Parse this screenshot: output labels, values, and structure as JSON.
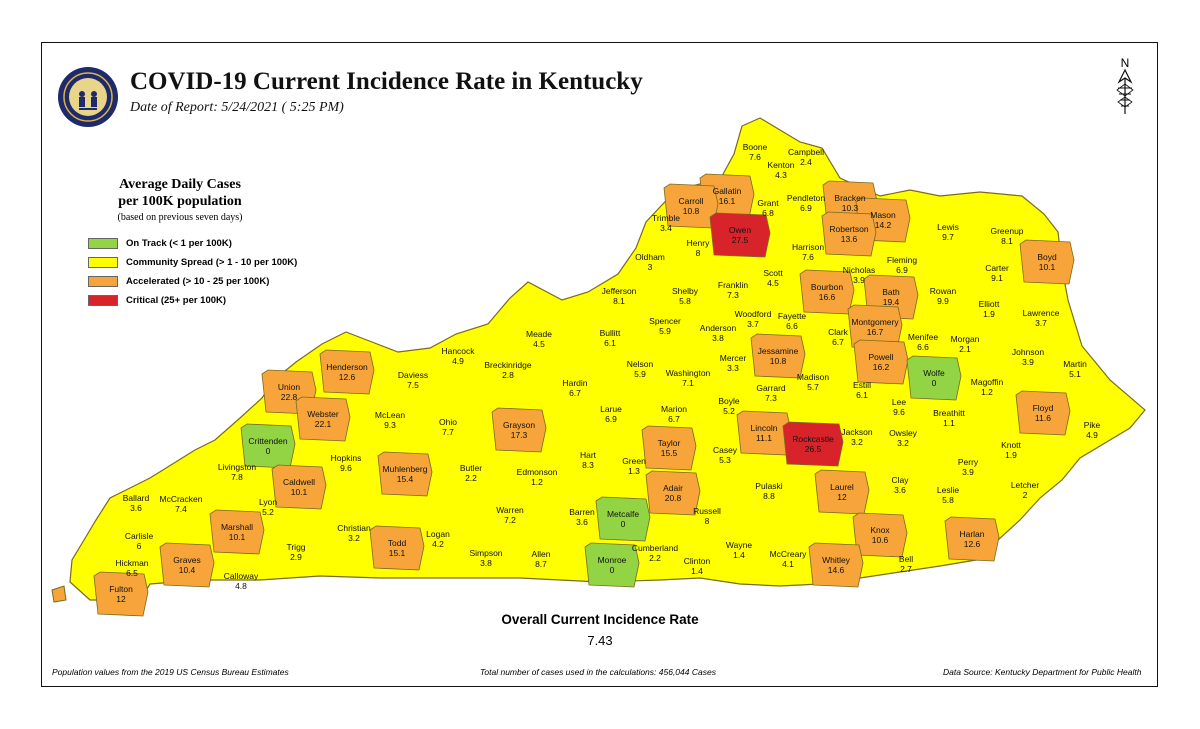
{
  "header": {
    "title": "COVID-19 Current Incidence Rate in Kentucky",
    "date_of_report": "Date of Report: 5/24/2021 ( 5:25 PM)",
    "north_label": "N"
  },
  "legend": {
    "title_line1": "Average Daily Cases",
    "title_line2": "per 100K population",
    "note": "(based on previous seven days)",
    "items": [
      {
        "label": "On Track (< 1 per 100K)",
        "color": "#92d443"
      },
      {
        "label": "Community Spread (> 1 - 10 per 100K)",
        "color": "#ffff00"
      },
      {
        "label": "Accelerated (> 10 - 25 per 100K)",
        "color": "#f7a43a"
      },
      {
        "label": "Critical (25+ per 100K)",
        "color": "#d8232a"
      }
    ]
  },
  "counties": [
    {
      "name": "Boone",
      "rate": "7.6",
      "level": 1
    },
    {
      "name": "Kenton",
      "rate": "4.3",
      "level": 1
    },
    {
      "name": "Campbell",
      "rate": "2.4",
      "level": 1
    },
    {
      "name": "Gallatin",
      "rate": "16.1",
      "level": 2
    },
    {
      "name": "Carroll",
      "rate": "10.8",
      "level": 2
    },
    {
      "name": "Trimble",
      "rate": "3.4",
      "level": 1
    },
    {
      "name": "Grant",
      "rate": "6.8",
      "level": 1
    },
    {
      "name": "Pendleton",
      "rate": "6.9",
      "level": 1
    },
    {
      "name": "Bracken",
      "rate": "10.3",
      "level": 2
    },
    {
      "name": "Mason",
      "rate": "14.2",
      "level": 2
    },
    {
      "name": "Robertson",
      "rate": "13.6",
      "level": 2
    },
    {
      "name": "Owen",
      "rate": "27.5",
      "level": 3
    },
    {
      "name": "Henry",
      "rate": "8",
      "level": 1
    },
    {
      "name": "Oldham",
      "rate": "3",
      "level": 1
    },
    {
      "name": "Harrison",
      "rate": "7.6",
      "level": 1
    },
    {
      "name": "Lewis",
      "rate": "9.7",
      "level": 1
    },
    {
      "name": "Greenup",
      "rate": "8.1",
      "level": 1
    },
    {
      "name": "Boyd",
      "rate": "10.1",
      "level": 2
    },
    {
      "name": "Fleming",
      "rate": "6.9",
      "level": 1
    },
    {
      "name": "Nicholas",
      "rate": "3.9",
      "level": 1
    },
    {
      "name": "Carter",
      "rate": "9.1",
      "level": 1
    },
    {
      "name": "Scott",
      "rate": "4.5",
      "level": 1
    },
    {
      "name": "Jefferson",
      "rate": "8.1",
      "level": 1
    },
    {
      "name": "Shelby",
      "rate": "5.8",
      "level": 1
    },
    {
      "name": "Franklin",
      "rate": "7.3",
      "level": 1
    },
    {
      "name": "Bourbon",
      "rate": "16.6",
      "level": 2
    },
    {
      "name": "Bath",
      "rate": "19.4",
      "level": 2
    },
    {
      "name": "Rowan",
      "rate": "9.9",
      "level": 1
    },
    {
      "name": "Elliott",
      "rate": "1.9",
      "level": 1
    },
    {
      "name": "Lawrence",
      "rate": "3.7",
      "level": 1
    },
    {
      "name": "Woodford",
      "rate": "3.7",
      "level": 1
    },
    {
      "name": "Fayette",
      "rate": "6.6",
      "level": 1
    },
    {
      "name": "Montgomery",
      "rate": "16.7",
      "level": 2
    },
    {
      "name": "Spencer",
      "rate": "5.9",
      "level": 1
    },
    {
      "name": "Anderson",
      "rate": "3.8",
      "level": 1
    },
    {
      "name": "Clark",
      "rate": "6.7",
      "level": 1
    },
    {
      "name": "Menifee",
      "rate": "6.6",
      "level": 1
    },
    {
      "name": "Morgan",
      "rate": "2.1",
      "level": 1
    },
    {
      "name": "Meade",
      "rate": "4.5",
      "level": 1
    },
    {
      "name": "Bullitt",
      "rate": "6.1",
      "level": 1
    },
    {
      "name": "Jessamine",
      "rate": "10.8",
      "level": 2
    },
    {
      "name": "Johnson",
      "rate": "3.9",
      "level": 1
    },
    {
      "name": "Martin",
      "rate": "5.1",
      "level": 1
    },
    {
      "name": "Hancock",
      "rate": "4.9",
      "level": 1
    },
    {
      "name": "Breckinridge",
      "rate": "2.8",
      "level": 1
    },
    {
      "name": "Nelson",
      "rate": "5.9",
      "level": 1
    },
    {
      "name": "Washington",
      "rate": "7.1",
      "level": 1
    },
    {
      "name": "Mercer",
      "rate": "3.3",
      "level": 1
    },
    {
      "name": "Powell",
      "rate": "16.2",
      "level": 2
    },
    {
      "name": "Wolfe",
      "rate": "0",
      "level": 0
    },
    {
      "name": "Henderson",
      "rate": "12.6",
      "level": 2
    },
    {
      "name": "Daviess",
      "rate": "7.5",
      "level": 1
    },
    {
      "name": "Hardin",
      "rate": "6.7",
      "level": 1
    },
    {
      "name": "Madison",
      "rate": "5.7",
      "level": 1
    },
    {
      "name": "Garrard",
      "rate": "7.3",
      "level": 1
    },
    {
      "name": "Estill",
      "rate": "6.1",
      "level": 1
    },
    {
      "name": "Magoffin",
      "rate": "1.2",
      "level": 1
    },
    {
      "name": "Union",
      "rate": "22.8",
      "level": 2
    },
    {
      "name": "Marion",
      "rate": "6.7",
      "level": 1
    },
    {
      "name": "Boyle",
      "rate": "5.2",
      "level": 1
    },
    {
      "name": "Lee",
      "rate": "9.6",
      "level": 1
    },
    {
      "name": "Breathitt",
      "rate": "1.1",
      "level": 1
    },
    {
      "name": "Floyd",
      "rate": "11.6",
      "level": 2
    },
    {
      "name": "Webster",
      "rate": "22.1",
      "level": 2
    },
    {
      "name": "McLean",
      "rate": "9.3",
      "level": 1
    },
    {
      "name": "Ohio",
      "rate": "7.7",
      "level": 1
    },
    {
      "name": "Grayson",
      "rate": "17.3",
      "level": 2
    },
    {
      "name": "Larue",
      "rate": "6.9",
      "level": 1
    },
    {
      "name": "Lincoln",
      "rate": "11.1",
      "level": 2
    },
    {
      "name": "Rockcastle",
      "rate": "26.5",
      "level": 3
    },
    {
      "name": "Jackson",
      "rate": "3.2",
      "level": 1
    },
    {
      "name": "Owsley",
      "rate": "3.2",
      "level": 1
    },
    {
      "name": "Pike",
      "rate": "4.9",
      "level": 1
    },
    {
      "name": "Crittenden",
      "rate": "0",
      "level": 0
    },
    {
      "name": "Taylor",
      "rate": "15.5",
      "level": 2
    },
    {
      "name": "Knott",
      "rate": "1.9",
      "level": 1
    },
    {
      "name": "Hopkins",
      "rate": "9.6",
      "level": 1
    },
    {
      "name": "Hart",
      "rate": "8.3",
      "level": 1
    },
    {
      "name": "Casey",
      "rate": "5.3",
      "level": 1
    },
    {
      "name": "Green",
      "rate": "1.3",
      "level": 1
    },
    {
      "name": "Perry",
      "rate": "3.9",
      "level": 1
    },
    {
      "name": "Livingston",
      "rate": "7.8",
      "level": 1
    },
    {
      "name": "Caldwell",
      "rate": "10.1",
      "level": 2
    },
    {
      "name": "Muhlenberg",
      "rate": "15.4",
      "level": 2
    },
    {
      "name": "Butler",
      "rate": "2.2",
      "level": 1
    },
    {
      "name": "Edmonson",
      "rate": "1.2",
      "level": 1
    },
    {
      "name": "Letcher",
      "rate": "2",
      "level": 1
    },
    {
      "name": "Ballard",
      "rate": "3.6",
      "level": 1
    },
    {
      "name": "McCracken",
      "rate": "7.4",
      "level": 1
    },
    {
      "name": "Adair",
      "rate": "20.8",
      "level": 2
    },
    {
      "name": "Pulaski",
      "rate": "8.8",
      "level": 1
    },
    {
      "name": "Laurel",
      "rate": "12",
      "level": 2
    },
    {
      "name": "Clay",
      "rate": "3.6",
      "level": 1
    },
    {
      "name": "Leslie",
      "rate": "5.8",
      "level": 1
    },
    {
      "name": "Lyon",
      "rate": "5.2",
      "level": 1
    },
    {
      "name": "Warren",
      "rate": "7.2",
      "level": 1
    },
    {
      "name": "Barren",
      "rate": "3.6",
      "level": 1
    },
    {
      "name": "Metcalfe",
      "rate": "0",
      "level": 0
    },
    {
      "name": "Russell",
      "rate": "8",
      "level": 1
    },
    {
      "name": "Carlisle",
      "rate": "6",
      "level": 1
    },
    {
      "name": "Marshall",
      "rate": "10.1",
      "level": 2
    },
    {
      "name": "Christian",
      "rate": "3.2",
      "level": 1
    },
    {
      "name": "Todd",
      "rate": "15.1",
      "level": 2
    },
    {
      "name": "Logan",
      "rate": "4.2",
      "level": 1
    },
    {
      "name": "Wayne",
      "rate": "1.4",
      "level": 1
    },
    {
      "name": "Knox",
      "rate": "10.6",
      "level": 2
    },
    {
      "name": "Harlan",
      "rate": "12.6",
      "level": 2
    },
    {
      "name": "Trigg",
      "rate": "2.9",
      "level": 1
    },
    {
      "name": "Hickman",
      "rate": "6.5",
      "level": 1
    },
    {
      "name": "Graves",
      "rate": "10.4",
      "level": 2
    },
    {
      "name": "Cumberland",
      "rate": "2.2",
      "level": 1
    },
    {
      "name": "Simpson",
      "rate": "3.8",
      "level": 1
    },
    {
      "name": "Allen",
      "rate": "8.7",
      "level": 1
    },
    {
      "name": "Monroe",
      "rate": "0",
      "level": 0
    },
    {
      "name": "Clinton",
      "rate": "1.4",
      "level": 1
    },
    {
      "name": "McCreary",
      "rate": "4.1",
      "level": 1
    },
    {
      "name": "Whitley",
      "rate": "14.6",
      "level": 2
    },
    {
      "name": "Bell",
      "rate": "2.7",
      "level": 1
    },
    {
      "name": "Calloway",
      "rate": "4.8",
      "level": 1
    },
    {
      "name": "Fulton",
      "rate": "12",
      "level": 2
    }
  ],
  "overall": {
    "label": "Overall Current Incidence Rate",
    "value": "7.43"
  },
  "footer": {
    "left": "Population values from the 2019 US Census Bureau Estimates",
    "center": "Total number of cases used in the calculations: 456,044 Cases",
    "right": "Data Source: Kentucky Department for Public Health"
  }
}
